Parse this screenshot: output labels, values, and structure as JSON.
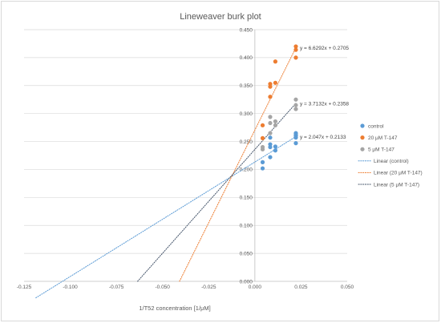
{
  "chart_data": {
    "type": "scatter",
    "title": "Lineweaver burk plot",
    "xlabel": "1/T52 concentration [1/μM]",
    "ylabel": "",
    "xlim": [
      -0.125,
      0.05
    ],
    "ylim": [
      0,
      0.45
    ],
    "x_ticks": [
      -0.125,
      -0.1,
      -0.075,
      -0.05,
      -0.025,
      0,
      0.025,
      0.05
    ],
    "x_tick_labels": [
      "-0.125",
      "-0.100",
      "-0.075",
      "-0.050",
      "-0.025",
      "0.000",
      "0.025",
      "0.050"
    ],
    "y_ticks": [
      0,
      0.05,
      0.1,
      0.15,
      0.2,
      0.25,
      0.3,
      0.35,
      0.4,
      0.45
    ],
    "y_tick_labels": [
      "0.000",
      "0.050",
      "0.100",
      "0.150",
      "0.200",
      "0.250",
      "0.300",
      "0.350",
      "0.400",
      "0.450"
    ],
    "grid": "horizontal",
    "legend_position": "right",
    "series": [
      {
        "name": "control",
        "color": "#5b9bd5",
        "points": [
          [
            0.0042,
            0.213
          ],
          [
            0.0042,
            0.202
          ],
          [
            0.0083,
            0.257
          ],
          [
            0.0083,
            0.24
          ],
          [
            0.0083,
            0.222
          ],
          [
            0.0083,
            0.245
          ],
          [
            0.0111,
            0.241
          ],
          [
            0.0111,
            0.234
          ],
          [
            0.0222,
            0.265
          ],
          [
            0.0222,
            0.26
          ],
          [
            0.0222,
            0.262
          ],
          [
            0.0222,
            0.257
          ],
          [
            0.0222,
            0.247
          ]
        ]
      },
      {
        "name": "20 μM T-147",
        "color": "#ed7d31",
        "points": [
          [
            0.0042,
            0.256
          ],
          [
            0.0042,
            0.279
          ],
          [
            0.0083,
            0.33
          ],
          [
            0.0083,
            0.353
          ],
          [
            0.0083,
            0.348
          ],
          [
            0.0111,
            0.393
          ],
          [
            0.0111,
            0.355
          ],
          [
            0.0222,
            0.42
          ],
          [
            0.0222,
            0.414
          ],
          [
            0.0222,
            0.4
          ]
        ]
      },
      {
        "name": "5 μM T-147",
        "color": "#a5a5a5",
        "points": [
          [
            0.0042,
            0.236
          ],
          [
            0.0042,
            0.24
          ],
          [
            0.0083,
            0.294
          ],
          [
            0.0083,
            0.283
          ],
          [
            0.0083,
            0.265
          ],
          [
            0.0111,
            0.286
          ],
          [
            0.0111,
            0.279
          ],
          [
            0.0222,
            0.325
          ],
          [
            0.0222,
            0.315
          ],
          [
            0.0222,
            0.308
          ]
        ]
      }
    ],
    "trendlines": [
      {
        "name": "Linear (control)",
        "color": "#5b9bd5",
        "slope": 2.047,
        "intercept": 0.2133,
        "x_range": [
          -0.1186,
          0.0222
        ],
        "equation": "y = 2.047x + 0.2133"
      },
      {
        "name": "Linear (20 μM T-147)",
        "color": "#ed7d31",
        "slope": 6.6292,
        "intercept": 0.2705,
        "x_range": [
          -0.0408,
          0.0222
        ],
        "equation": "y = 6.6292x + 0.2705"
      },
      {
        "name": "Linear (5 μM T-147)",
        "color": "#44546a",
        "slope": 3.7132,
        "intercept": 0.2358,
        "x_range": [
          -0.0635,
          0.0222
        ],
        "equation": "y = 3.7132x + 0.2358"
      }
    ],
    "legend": [
      {
        "label": "control",
        "kind": "marker",
        "color": "#5b9bd5"
      },
      {
        "label": "20 μM T-147",
        "kind": "marker",
        "color": "#ed7d31"
      },
      {
        "label": "5 μM T-147",
        "kind": "marker",
        "color": "#a5a5a5"
      },
      {
        "label": "Linear (control)",
        "kind": "line",
        "color": "#5b9bd5"
      },
      {
        "label": "Linear (20 μM T-147)",
        "kind": "line",
        "color": "#ed7d31"
      },
      {
        "label": "Linear (5 μM T-147)",
        "kind": "line",
        "color": "#44546a"
      }
    ]
  }
}
